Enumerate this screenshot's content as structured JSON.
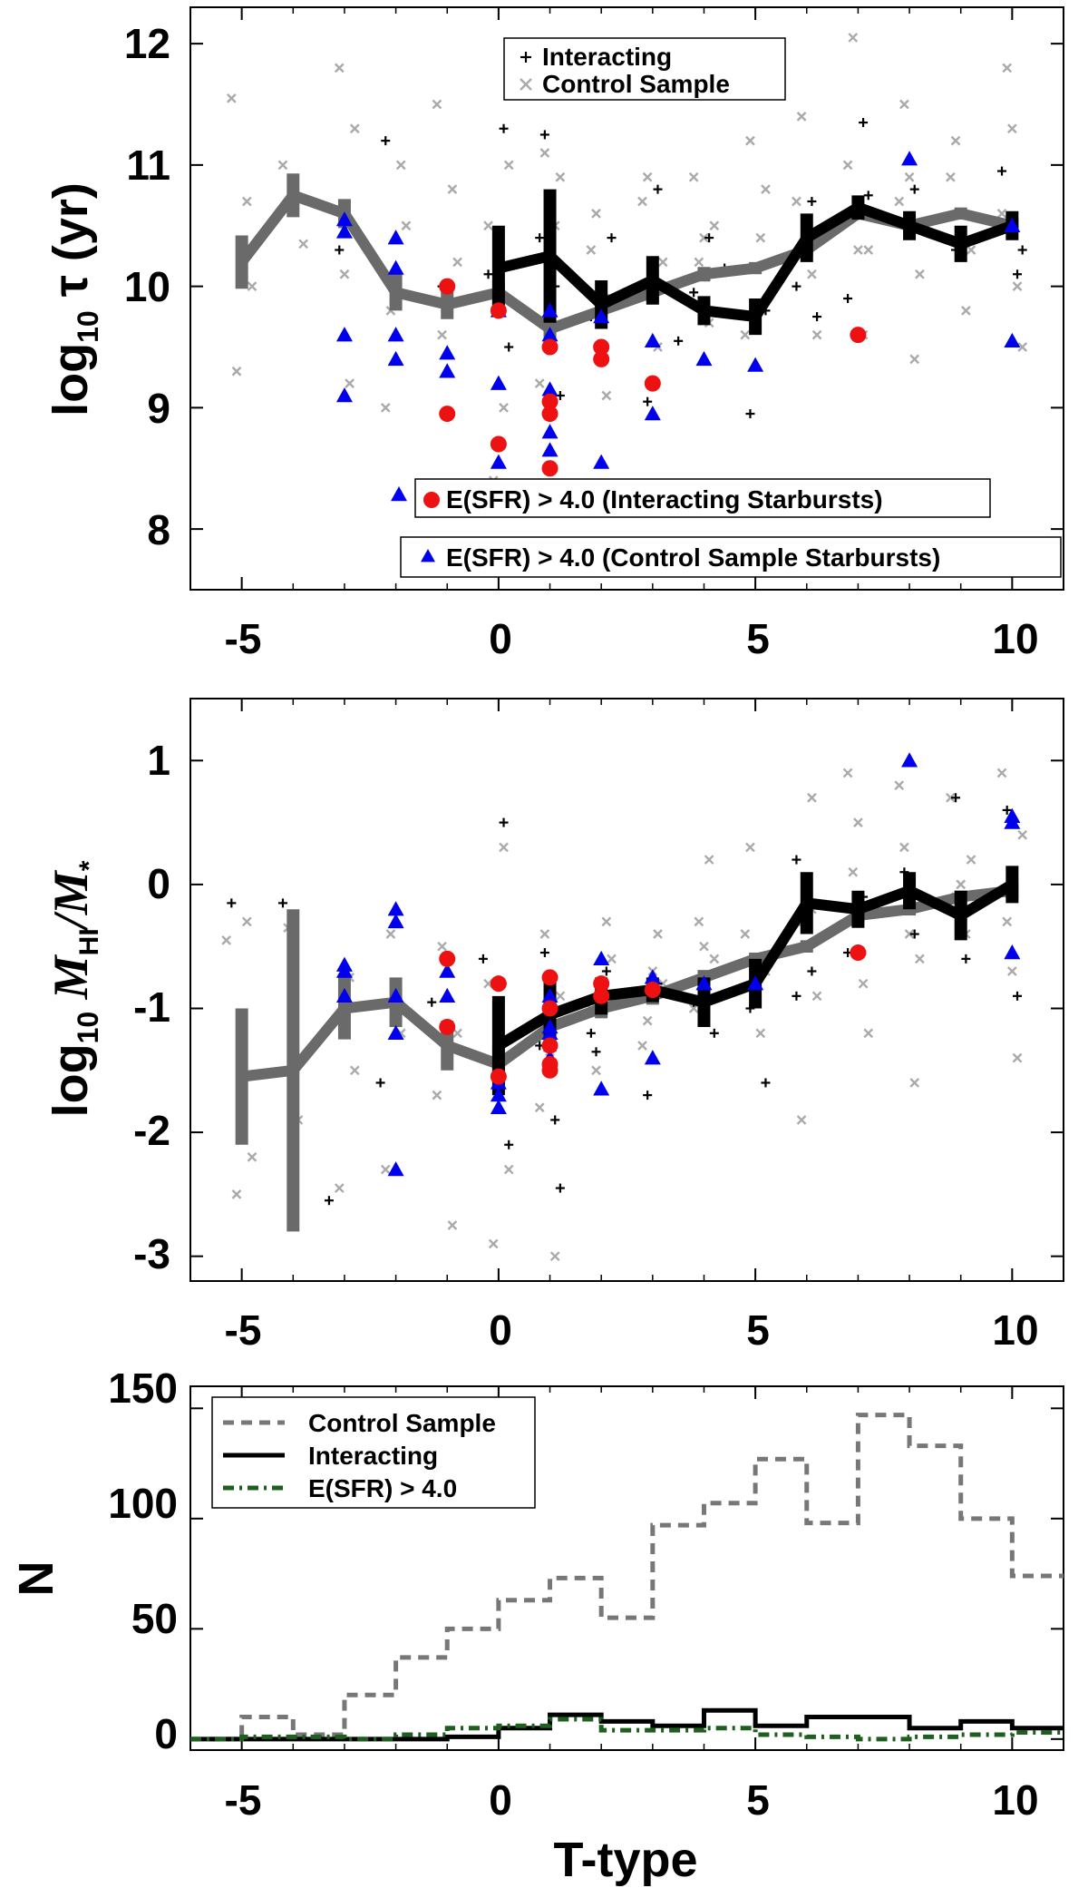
{
  "figure": {
    "panels_count": 3
  },
  "chart_data": [
    {
      "type": "scatter",
      "id": "tau",
      "ylabel": "log10 τ (yr)",
      "ylabel_main": "log",
      "ylabel_sub": "10",
      "ylabel_rest": " τ (yr)",
      "xlabel": "",
      "xlim": [
        -6,
        11
      ],
      "ylim": [
        7.5,
        12.3
      ],
      "xticks": [
        -5,
        0,
        5,
        10
      ],
      "xtick_labels": [
        "-5",
        "0",
        "5",
        "10"
      ],
      "yticks": [
        8,
        9,
        10,
        11,
        12
      ],
      "ytick_labels": [
        "8",
        "9",
        "10",
        "11",
        "12"
      ],
      "legend_top": [
        {
          "label": "Interacting",
          "marker": "plus",
          "color": "#000000"
        },
        {
          "label": "Control Sample",
          "marker": "cross",
          "color": "#aaaaaa"
        }
      ],
      "legend_bottom": [
        {
          "label": "E(SFR) > 4.0 (Interacting Starbursts)",
          "marker": "circle",
          "color": "#ee1111"
        },
        {
          "label": "E(SFR) > 4.0 (Control Sample Starbursts)",
          "marker": "triangle",
          "color": "#0000ee"
        }
      ],
      "series": [
        {
          "name": "Control Sample median",
          "color": "#6a6a6a",
          "x": [
            -5,
            -4,
            -3,
            -2,
            -1,
            0,
            1,
            2,
            3,
            4,
            5,
            6,
            7,
            8,
            9,
            10
          ],
          "y": [
            10.2,
            10.75,
            10.6,
            9.95,
            9.85,
            9.95,
            9.65,
            9.8,
            9.95,
            10.1,
            10.15,
            10.3,
            10.6,
            10.5,
            10.6,
            10.5
          ],
          "err": [
            0.22,
            0.18,
            0.12,
            0.15,
            0.12,
            0.1,
            0.12,
            0.1,
            0.08,
            0.06,
            0.05,
            0.05,
            0.04,
            0.05,
            0.05,
            0.06
          ]
        },
        {
          "name": "Interacting median",
          "color": "#000000",
          "x": [
            0,
            1,
            2,
            3,
            4,
            5,
            6,
            7,
            8,
            9,
            10
          ],
          "y": [
            10.15,
            10.25,
            9.85,
            10.05,
            9.8,
            9.75,
            10.4,
            10.65,
            10.5,
            10.35,
            10.5
          ],
          "err": [
            0.35,
            0.55,
            0.2,
            0.2,
            0.12,
            0.15,
            0.2,
            0.1,
            0.12,
            0.15,
            0.12
          ]
        }
      ],
      "interacting_points": {
        "x": [
          -5,
          -3.1,
          -2.2,
          -1.1,
          0.1,
          -0.2,
          0.2,
          0.8,
          0.9,
          1.1,
          1.2,
          1.8,
          2.2,
          2.9,
          3.1,
          3.8,
          4.1,
          4.9,
          5.2,
          5.8,
          6.1,
          6.8,
          7.1,
          7.2,
          7.9,
          8.1,
          8.9,
          9.1,
          9.8,
          10.1,
          10.2,
          6.2,
          4.4,
          3.5
        ],
        "y": [
          10.35,
          10.3,
          11.2,
          10.0,
          11.3,
          10.1,
          9.5,
          10.4,
          11.25,
          10.0,
          9.1,
          9.75,
          10.4,
          9.05,
          10.8,
          9.95,
          10.4,
          8.95,
          9.8,
          10.0,
          10.7,
          9.9,
          11.35,
          10.75,
          10.5,
          10.8,
          10.3,
          10.6,
          10.95,
          10.1,
          10.3,
          9.75,
          10.15,
          9.55
        ]
      },
      "control_points": {
        "x": [
          -5.2,
          -4.8,
          -5.1,
          -4.9,
          -3.8,
          -4.2,
          -3.1,
          -2.9,
          -3.0,
          -2.8,
          -2.1,
          -1.9,
          -2.2,
          -1.8,
          -1.2,
          -0.9,
          -1.1,
          -0.8,
          -0.2,
          0.2,
          0.1,
          -0.1,
          0.9,
          1.1,
          0.8,
          1.2,
          1.9,
          2.1,
          1.8,
          2.2,
          2.8,
          3.1,
          3.2,
          2.9,
          3.8,
          4.1,
          4.2,
          3.9,
          4.9,
          5.1,
          4.8,
          5.2,
          5.9,
          6.1,
          5.8,
          6.2,
          6.9,
          7.1,
          6.8,
          7.2,
          7.9,
          8.1,
          7.8,
          8.2,
          8.9,
          9.1,
          8.8,
          9.2,
          9.9,
          10.1,
          9.8,
          10.2,
          6.0,
          7.0,
          8.0,
          9.0,
          10.0,
          5.0,
          4.0,
          3.0
        ],
        "y": [
          11.55,
          10.0,
          9.3,
          10.7,
          10.35,
          11.0,
          11.8,
          9.2,
          10.1,
          11.3,
          9.8,
          11.0,
          9.0,
          10.5,
          11.5,
          10.8,
          9.6,
          10.2,
          10.5,
          11.0,
          9.0,
          8.4,
          11.1,
          10.5,
          9.2,
          10.9,
          10.6,
          9.1,
          10.3,
          9.9,
          10.7,
          9.5,
          10.2,
          10.9,
          10.9,
          9.7,
          10.5,
          10.2,
          11.2,
          10.4,
          9.6,
          10.8,
          11.4,
          10.1,
          10.7,
          9.6,
          12.05,
          9.6,
          11.0,
          10.3,
          11.5,
          9.4,
          10.7,
          10.1,
          11.2,
          9.8,
          10.9,
          10.3,
          11.8,
          10.0,
          10.6,
          9.5,
          10.5,
          10.3,
          10.9,
          10.6,
          11.3,
          9.8,
          10.4,
          10.1
        ]
      },
      "interacting_starbursts": {
        "x": [
          -1,
          -1,
          0,
          0,
          1,
          1,
          1,
          1,
          2,
          2,
          3,
          7
        ],
        "y": [
          10.0,
          8.95,
          9.8,
          8.7,
          9.5,
          9.05,
          8.95,
          8.5,
          9.5,
          9.4,
          9.2,
          9.6
        ]
      },
      "control_starbursts": {
        "x": [
          -3,
          -3,
          -3,
          -3,
          -2,
          -2,
          -2,
          -2,
          -1,
          -1,
          0,
          0,
          0,
          1,
          1,
          1,
          1,
          1,
          1,
          2,
          2,
          3,
          3,
          4,
          5,
          8,
          10,
          10
        ],
        "y": [
          10.55,
          10.45,
          9.6,
          9.1,
          10.4,
          10.15,
          9.6,
          9.4,
          9.45,
          9.3,
          9.2,
          8.55,
          9.8,
          9.8,
          9.15,
          8.8,
          8.65,
          9.6,
          9.0,
          9.75,
          8.55,
          9.55,
          8.95,
          9.4,
          9.35,
          11.05,
          10.5,
          9.55
        ]
      }
    },
    {
      "type": "scatter",
      "id": "gas_fraction",
      "ylabel": "log10 M_HI/M_*",
      "ylabel_main": "log",
      "ylabel_sub": "10",
      "ylabel_rest": " M",
      "ylabel_sub2": "HI",
      "ylabel_rest2": "/M",
      "ylabel_sub3": "*",
      "xlabel": "",
      "xlim": [
        -6,
        11
      ],
      "ylim": [
        -3.2,
        1.5
      ],
      "xticks": [
        -5,
        0,
        5,
        10
      ],
      "xtick_labels": [
        "-5",
        "0",
        "5",
        "10"
      ],
      "yticks": [
        -3,
        -2,
        -1,
        0,
        1
      ],
      "ytick_labels": [
        "-3",
        "-2",
        "-1",
        "0",
        "1"
      ],
      "series": [
        {
          "name": "Control Sample median",
          "color": "#6a6a6a",
          "x": [
            -5,
            -4,
            -3,
            -2,
            -1,
            0,
            1,
            2,
            3,
            4,
            5,
            6,
            7,
            8,
            9,
            10
          ],
          "y": [
            -1.55,
            -1.5,
            -1.0,
            -0.95,
            -1.3,
            -1.45,
            -1.15,
            -1.0,
            -0.9,
            -0.75,
            -0.6,
            -0.5,
            -0.25,
            -0.2,
            -0.1,
            -0.05
          ],
          "err": [
            0.55,
            1.3,
            0.25,
            0.2,
            0.2,
            0.15,
            0.12,
            0.08,
            0.07,
            0.06,
            0.05,
            0.05,
            0.05,
            0.05,
            0.05,
            0.06
          ]
        },
        {
          "name": "Interacting median",
          "color": "#000000",
          "x": [
            0,
            1,
            2,
            3,
            4,
            5,
            6,
            7,
            8,
            9,
            10
          ],
          "y": [
            -1.3,
            -1.05,
            -0.9,
            -0.85,
            -0.95,
            -0.8,
            -0.15,
            -0.2,
            -0.05,
            -0.25,
            0.0
          ],
          "err": [
            0.4,
            0.3,
            0.15,
            0.1,
            0.2,
            0.2,
            0.25,
            0.15,
            0.15,
            0.2,
            0.15
          ]
        }
      ],
      "interacting_points": {
        "x": [
          -5.2,
          -4.2,
          -3.3,
          -2.3,
          -1.3,
          -0.3,
          0.1,
          0.2,
          0.9,
          1.1,
          1.2,
          1.8,
          2.1,
          2.9,
          3.1,
          3.8,
          4.2,
          4.9,
          5.2,
          5.8,
          6.1,
          6.9,
          7.1,
          7.9,
          8.1,
          8.9,
          9.1,
          9.9,
          10.1,
          0.8,
          1.9,
          3.9,
          5.8,
          6.8
        ],
        "y": [
          -0.15,
          -0.15,
          -2.55,
          -1.6,
          -0.95,
          -0.6,
          0.5,
          -2.1,
          -0.55,
          -1.9,
          -2.45,
          -1.2,
          -0.7,
          -1.7,
          -0.8,
          -0.95,
          -1.2,
          -1.0,
          -1.6,
          0.2,
          -0.7,
          -0.3,
          -0.1,
          0.1,
          -0.4,
          0.7,
          -0.6,
          0.6,
          -0.9,
          -1.3,
          -1.35,
          -0.8,
          -0.9,
          -0.55
        ]
      },
      "control_points": {
        "x": [
          -5.3,
          -4.8,
          -5.1,
          -4.9,
          -4.1,
          -3.9,
          -3.1,
          -2.9,
          -2.8,
          -2.1,
          -1.9,
          -2.2,
          -1.1,
          -0.9,
          -1.2,
          -0.8,
          -0.1,
          0.1,
          -0.2,
          0.2,
          0.9,
          1.1,
          0.8,
          1.2,
          1.9,
          2.1,
          1.8,
          2.2,
          2.8,
          3.1,
          3.2,
          2.9,
          3.8,
          4.1,
          4.2,
          3.9,
          4.8,
          5.1,
          4.9,
          5.2,
          5.9,
          6.1,
          5.8,
          6.2,
          6.8,
          7.1,
          6.9,
          7.2,
          7.8,
          8.1,
          7.9,
          8.2,
          8.8,
          9.1,
          8.9,
          9.2,
          9.8,
          10.1,
          9.9,
          10.2,
          6.1,
          7.0,
          8.0,
          9.0,
          10.0,
          5.0,
          4.0,
          3.0,
          1.0,
          0.0
        ],
        "y": [
          -0.45,
          -2.2,
          -2.5,
          -0.3,
          -0.35,
          -1.9,
          -2.45,
          -0.75,
          -1.5,
          -0.4,
          -1.2,
          -2.3,
          -0.5,
          -2.75,
          -1.7,
          -1.2,
          -2.9,
          0.3,
          -0.8,
          -2.3,
          -0.4,
          -3.0,
          -1.8,
          -0.9,
          -1.5,
          -0.3,
          -1.0,
          -0.6,
          -1.3,
          -0.4,
          -0.8,
          -1.1,
          -1.0,
          0.2,
          -0.6,
          -0.3,
          -0.4,
          -1.2,
          0.3,
          -0.7,
          -1.9,
          0.7,
          -0.3,
          -0.9,
          0.9,
          -0.8,
          0.1,
          -1.2,
          0.8,
          -1.6,
          0.3,
          -0.6,
          0.7,
          -0.4,
          -0.1,
          0.2,
          0.9,
          -1.4,
          -0.3,
          0.4,
          -0.2,
          0.5,
          -0.4,
          0.0,
          -0.7,
          -0.9,
          -0.5,
          -0.7,
          -1.4,
          -1.0
        ]
      },
      "interacting_starbursts": {
        "x": [
          -1,
          -1,
          0,
          0,
          1,
          1,
          1,
          1,
          1,
          2,
          2,
          3,
          7
        ],
        "y": [
          -0.6,
          -1.15,
          -0.8,
          -1.55,
          -0.75,
          -1.0,
          -1.3,
          -1.5,
          -1.45,
          -0.8,
          -0.9,
          -0.85,
          -0.55
        ]
      },
      "control_starbursts": {
        "x": [
          -3,
          -3,
          -3,
          -2,
          -2,
          -2,
          -2,
          -2,
          -1,
          -1,
          0,
          0,
          0,
          1,
          1,
          1,
          1,
          2,
          2,
          3,
          3,
          4,
          5,
          8,
          10,
          10,
          10
        ],
        "y": [
          -0.65,
          -0.9,
          -0.7,
          -0.2,
          -0.3,
          -0.9,
          -1.2,
          -2.3,
          -0.7,
          -0.9,
          -1.6,
          -1.7,
          -1.8,
          -0.9,
          -1.15,
          -1.4,
          -1.2,
          -0.6,
          -1.65,
          -0.75,
          -1.4,
          -0.8,
          -0.8,
          1.0,
          0.55,
          0.5,
          -0.55
        ]
      }
    },
    {
      "type": "line",
      "id": "histogram",
      "ylabel": "N",
      "xlabel": "T-type",
      "xlim": [
        -6,
        11
      ],
      "ylim": [
        -5,
        160
      ],
      "xticks": [
        -5,
        0,
        5,
        10
      ],
      "xtick_labels": [
        "-5",
        "0",
        "5",
        "10"
      ],
      "yticks": [
        0,
        50,
        100,
        150
      ],
      "ytick_labels": [
        "0",
        "50",
        "100",
        "150"
      ],
      "legend": [
        {
          "label": "Control Sample",
          "style": "dashed",
          "color": "#777777"
        },
        {
          "label": "Interacting",
          "style": "solid",
          "color": "#000000"
        },
        {
          "label": "E(SFR) > 4.0",
          "style": "dashdot",
          "color": "#1e5e1e"
        }
      ],
      "bin_edges": [
        -6,
        -5,
        -4,
        -3,
        -2,
        -1,
        0,
        1,
        2,
        3,
        4,
        5,
        6,
        7,
        8,
        9,
        10,
        11
      ],
      "series": [
        {
          "name": "Control Sample",
          "values": [
            0,
            10,
            2,
            20,
            37,
            50,
            63,
            73,
            55,
            97,
            107,
            127,
            98,
            147,
            133,
            100,
            74
          ]
        },
        {
          "name": "Interacting",
          "values": [
            0,
            0,
            0,
            0,
            0,
            1,
            5,
            11,
            8,
            6,
            13,
            6,
            10,
            10,
            5,
            8,
            5
          ]
        },
        {
          "name": "E(SFR) > 4.0",
          "values": [
            0,
            1,
            1,
            0,
            2,
            5,
            6,
            9,
            4,
            4,
            5,
            2,
            1,
            0,
            1,
            2,
            3
          ]
        }
      ]
    }
  ]
}
